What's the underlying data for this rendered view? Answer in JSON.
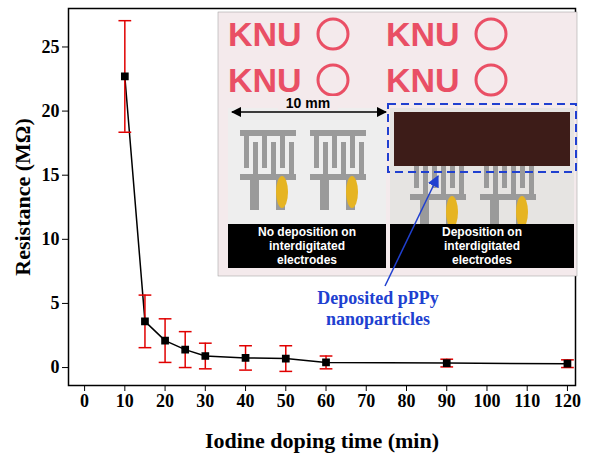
{
  "chart_data": {
    "type": "line",
    "x": [
      10,
      15,
      20,
      25,
      30,
      40,
      50,
      60,
      90,
      120
    ],
    "values": [
      22.7,
      3.6,
      2.1,
      1.4,
      0.9,
      0.75,
      0.7,
      0.4,
      0.35,
      0.3
    ],
    "errors": [
      4.35,
      2.05,
      1.7,
      1.4,
      1.0,
      0.95,
      1.0,
      0.5,
      0.3,
      0.3
    ],
    "x_label": "Iodine doping time (min)",
    "y_label": "Resistance (MΩ)",
    "xlim": [
      -4,
      122
    ],
    "ylim": [
      -1.4,
      28
    ],
    "xticks": [
      0,
      10,
      20,
      30,
      40,
      50,
      60,
      70,
      80,
      90,
      100,
      110,
      120
    ],
    "yticks": [
      0,
      5,
      10,
      15,
      20,
      25
    ],
    "color": "#000000",
    "marker": "square",
    "annotations": [
      "10 mm",
      "No deposition on interdigitated electrodes",
      "Deposition on interdigitated electrodes",
      "Deposited pPPy nanoparticles",
      "KNU"
    ]
  }
}
